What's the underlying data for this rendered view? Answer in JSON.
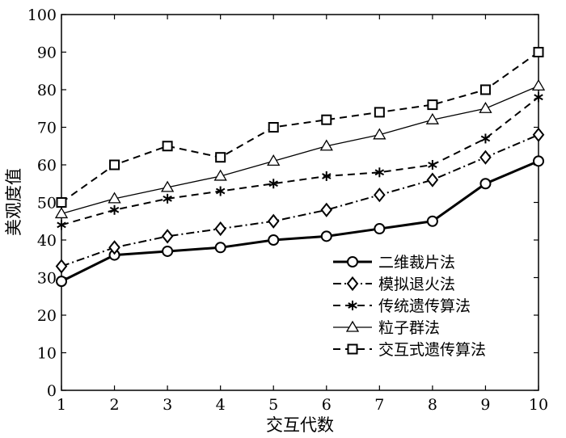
{
  "chart_data": {
    "type": "line",
    "xlabel": "交互代数",
    "ylabel": "美观度值",
    "x": [
      1,
      2,
      3,
      4,
      5,
      6,
      7,
      8,
      9,
      10
    ],
    "xlim": [
      1,
      10
    ],
    "ylim": [
      0,
      100
    ],
    "xticks": [
      "1",
      "2",
      "3",
      "4",
      "5",
      "6",
      "7",
      "8",
      "9",
      "10"
    ],
    "yticks": [
      "0",
      "10",
      "20",
      "30",
      "40",
      "50",
      "60",
      "70",
      "80",
      "90",
      "100"
    ],
    "grid": false,
    "legend_position": "bottom-right",
    "series": [
      {
        "name": "二维裁片法",
        "marker": "circle",
        "line": "solid-thick",
        "values": [
          29,
          36,
          37,
          38,
          40,
          41,
          43,
          45,
          55,
          61
        ]
      },
      {
        "name": "模拟退火法",
        "marker": "diamond",
        "line": "dashdot",
        "values": [
          33,
          38,
          41,
          43,
          45,
          48,
          52,
          56,
          62,
          68
        ]
      },
      {
        "name": "传统遗传算法",
        "marker": "asterisk",
        "line": "dashed",
        "values": [
          44,
          48,
          51,
          53,
          55,
          57,
          58,
          60,
          67,
          78
        ]
      },
      {
        "name": "粒子群法",
        "marker": "triangle",
        "line": "solid-thin",
        "values": [
          47,
          51,
          54,
          57,
          61,
          65,
          68,
          72,
          75,
          81
        ]
      },
      {
        "name": "交互式遗传算法",
        "marker": "square",
        "line": "dashed",
        "values": [
          50,
          60,
          65,
          62,
          70,
          72,
          74,
          76,
          80,
          90
        ]
      }
    ]
  }
}
